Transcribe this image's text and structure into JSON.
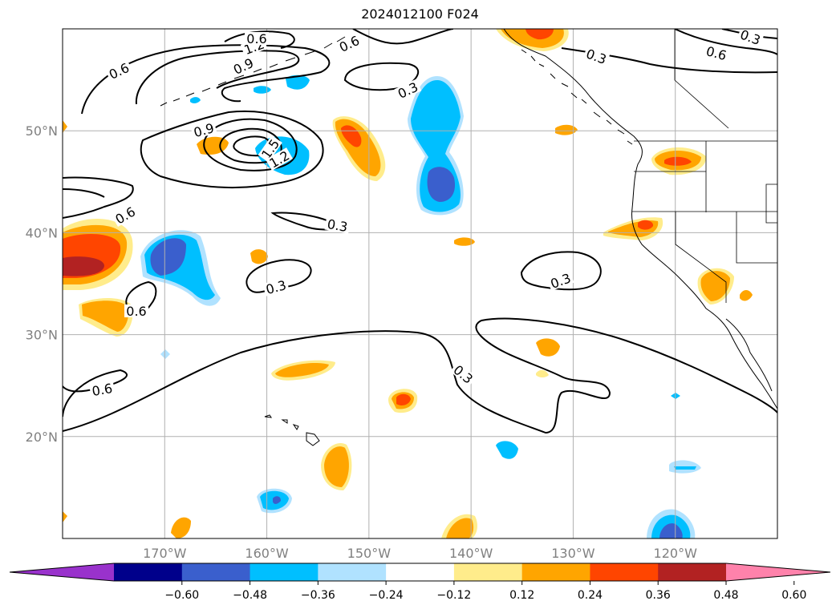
{
  "title": "2024012100 F024",
  "map": {
    "lon_range": [
      180,
      110
    ],
    "lat_range": [
      10,
      60
    ],
    "lat_ticks": [
      {
        "value": 50,
        "label": "50°N"
      },
      {
        "value": 40,
        "label": "40°N"
      },
      {
        "value": 30,
        "label": "30°N"
      },
      {
        "value": 20,
        "label": "20°N"
      }
    ],
    "lon_ticks": [
      {
        "value": 170,
        "label": "170°W"
      },
      {
        "value": 160,
        "label": "160°W"
      },
      {
        "value": 150,
        "label": "150°W"
      },
      {
        "value": 140,
        "label": "140°W"
      },
      {
        "value": 130,
        "label": "130°W"
      },
      {
        "value": 120,
        "label": "120°W"
      }
    ],
    "grid": true,
    "contour_labels": [
      "0.6",
      "1.2",
      "0.9",
      "0.6",
      "0.3",
      "0.9",
      "1.5",
      "1.2",
      "0.6",
      "0.3",
      "0.3",
      "0.6",
      "0.3",
      "0.6",
      "0.3",
      "0.3",
      "0.6",
      "0.3",
      "0.6"
    ]
  },
  "colorbar": {
    "extend": "both",
    "colors": [
      "#9932cc",
      "#00008b",
      "#3a5fcd",
      "#00bfff",
      "#b0e2ff",
      "#ffffff",
      "#ffec8b",
      "#ffa500",
      "#ff4500",
      "#b22222",
      "#ff82ab"
    ],
    "labels": [
      "−0.60",
      "−0.48",
      "−0.36",
      "−0.24",
      "−0.12",
      "0.12",
      "0.24",
      "0.36",
      "0.48",
      "0.60"
    ]
  }
}
